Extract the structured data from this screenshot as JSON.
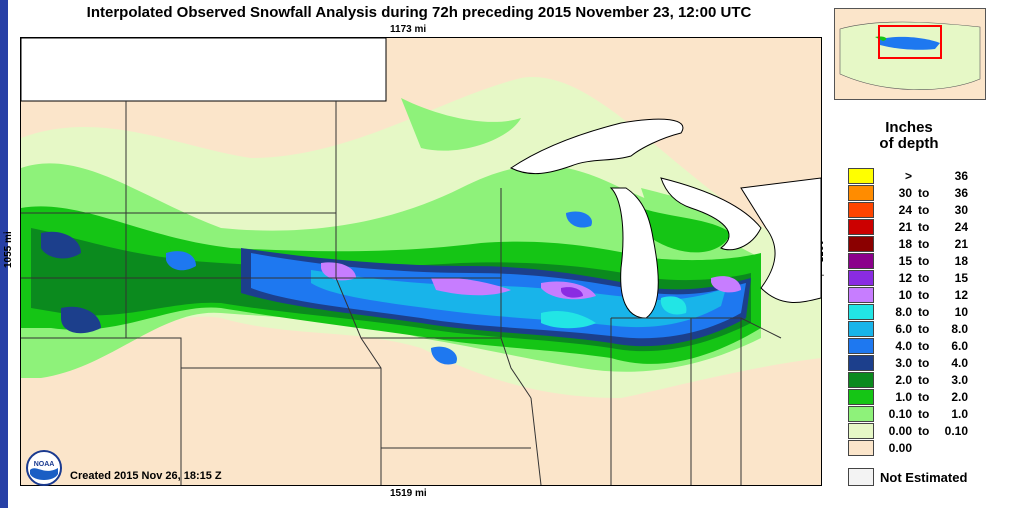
{
  "title": "Interpolated Observed Snowfall Analysis during 72h preceding 2015 November 23, 12:00 UTC",
  "scale": {
    "top": "1173 mi",
    "bottom": "1519 mi",
    "left": "1055 mi",
    "right": "1055 mi"
  },
  "created": "Created 2015 Nov 26, 18:15 Z",
  "logo_text": "NOAA",
  "legend": {
    "title_line1": "Inches",
    "title_line2": "of depth",
    "rows": [
      {
        "lo": ">",
        "to": "",
        "hi": "36",
        "color": "#ffff00"
      },
      {
        "lo": "30",
        "to": "to",
        "hi": "36",
        "color": "#ff8c00"
      },
      {
        "lo": "24",
        "to": "to",
        "hi": "30",
        "color": "#ff4500"
      },
      {
        "lo": "21",
        "to": "to",
        "hi": "24",
        "color": "#cc0000"
      },
      {
        "lo": "18",
        "to": "to",
        "hi": "21",
        "color": "#8b0000"
      },
      {
        "lo": "15",
        "to": "to",
        "hi": "18",
        "color": "#8b008b"
      },
      {
        "lo": "12",
        "to": "to",
        "hi": "15",
        "color": "#8a2be2"
      },
      {
        "lo": "10",
        "to": "to",
        "hi": "12",
        "color": "#c77dff"
      },
      {
        "lo": "8.0",
        "to": "to",
        "hi": "10",
        "color": "#22e5e5"
      },
      {
        "lo": "6.0",
        "to": "to",
        "hi": "8.0",
        "color": "#18b4ea"
      },
      {
        "lo": "4.0",
        "to": "to",
        "hi": "6.0",
        "color": "#1e78f0"
      },
      {
        "lo": "3.0",
        "to": "to",
        "hi": "4.0",
        "color": "#1c3f8c"
      },
      {
        "lo": "2.0",
        "to": "to",
        "hi": "3.0",
        "color": "#0b8a1e"
      },
      {
        "lo": "1.0",
        "to": "to",
        "hi": "2.0",
        "color": "#15c515"
      },
      {
        "lo": "0.10",
        "to": "to",
        "hi": "1.0",
        "color": "#8ef27a"
      },
      {
        "lo": "0.00",
        "to": "to",
        "hi": "0.10",
        "color": "#e6f8c6"
      },
      {
        "lo": "0.00",
        "to": "",
        "hi": "",
        "color": "#fbe5ca"
      }
    ],
    "not_estimated": "Not Estimated"
  },
  "colors": {
    "land": "#fbe5ca",
    "water": "#ffffff",
    "not_estimated": "#f3f3f3",
    "border": "#000000"
  }
}
